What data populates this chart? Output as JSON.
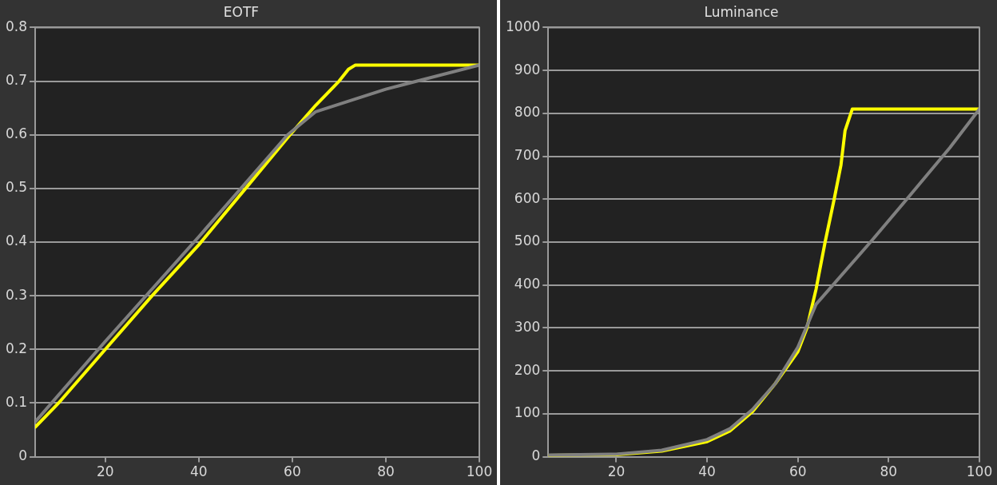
{
  "chart_data": [
    {
      "type": "line",
      "title": "EOTF",
      "xlim": [
        5,
        100
      ],
      "xticks": [
        20,
        40,
        60,
        80,
        100
      ],
      "ylim": [
        0,
        0.8
      ],
      "yticks": [
        0,
        0.1,
        0.2,
        0.3,
        0.4,
        0.5,
        0.6,
        0.7,
        0.8
      ],
      "grid": "y",
      "legend": false,
      "marker": "none",
      "line_style": "solid",
      "series": [
        {
          "color": "#808080",
          "x": [
            5,
            20,
            40,
            59,
            65,
            80,
            100
          ],
          "values": [
            0.065,
            0.215,
            0.41,
            0.6,
            0.643,
            0.685,
            0.73
          ]
        },
        {
          "color": "#ffff00",
          "x": [
            5,
            10,
            20,
            30,
            40,
            50,
            60,
            65,
            70,
            72,
            73.5,
            100
          ],
          "values": [
            0.055,
            0.1,
            0.2,
            0.3,
            0.395,
            0.5,
            0.605,
            0.655,
            0.7,
            0.722,
            0.73,
            0.73
          ]
        }
      ]
    },
    {
      "type": "line",
      "title": "Luminance",
      "xlim": [
        5,
        100
      ],
      "xticks": [
        20,
        40,
        60,
        80,
        100
      ],
      "ylim": [
        0,
        1000
      ],
      "yticks": [
        0,
        100,
        200,
        300,
        400,
        500,
        600,
        700,
        800,
        900,
        1000
      ],
      "grid": "y",
      "legend": false,
      "marker": "none",
      "line_style": "solid",
      "series": [
        {
          "color": "#808080",
          "x": [
            5,
            20,
            30,
            40,
            45,
            50,
            55,
            60,
            64,
            76,
            84,
            93.5,
            100
          ],
          "values": [
            4,
            6,
            15,
            40,
            65,
            110,
            170,
            255,
            355,
            500,
            600,
            720,
            810
          ]
        },
        {
          "color": "#ffff00",
          "x": [
            5,
            20,
            30,
            40,
            45,
            50,
            55,
            60,
            62,
            64,
            66,
            68,
            69.5,
            70.4,
            72,
            100
          ],
          "values": [
            3,
            5,
            13,
            35,
            60,
            105,
            170,
            245,
            300,
            390,
            500,
            600,
            680,
            760,
            810,
            810
          ]
        }
      ]
    }
  ]
}
